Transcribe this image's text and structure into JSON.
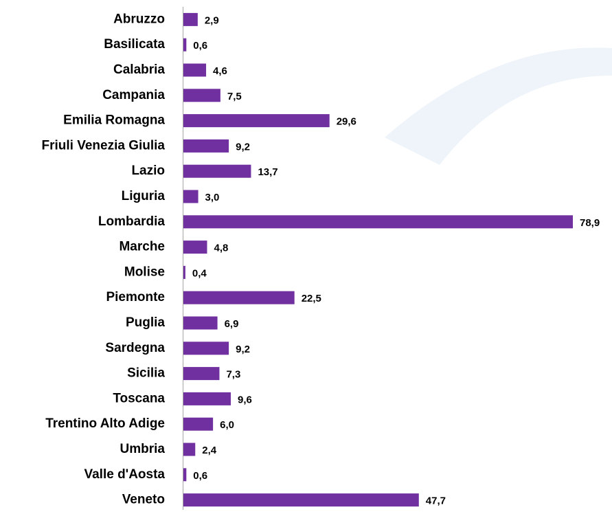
{
  "chart_data": {
    "type": "bar",
    "orientation": "horizontal",
    "color": "#7030a0",
    "categories": [
      "Abruzzo",
      "Basilicata",
      "Calabria",
      "Campania",
      "Emilia Romagna",
      "Friuli Venezia Giulia",
      "Lazio",
      "Liguria",
      "Lombardia",
      "Marche",
      "Molise",
      "Piemonte",
      "Puglia",
      "Sardegna",
      "Sicilia",
      "Toscana",
      "Trentino Alto Adige",
      "Umbria",
      "Valle d'Aosta",
      "Veneto"
    ],
    "values": [
      2.9,
      0.6,
      4.6,
      7.5,
      29.6,
      9.2,
      13.7,
      3.0,
      78.9,
      4.8,
      0.4,
      22.5,
      6.9,
      9.2,
      7.3,
      9.6,
      6.0,
      2.4,
      0.6,
      47.7
    ],
    "value_labels": [
      "2,9",
      "0,6",
      "4,6",
      "7,5",
      "29,6",
      "9,2",
      "13,7",
      "3,0",
      "78,9",
      "4,8",
      "0,4",
      "22,5",
      "6,9",
      "9,2",
      "7,3",
      "9,6",
      "6,0",
      "2,4",
      "0,6",
      "47,7"
    ]
  }
}
